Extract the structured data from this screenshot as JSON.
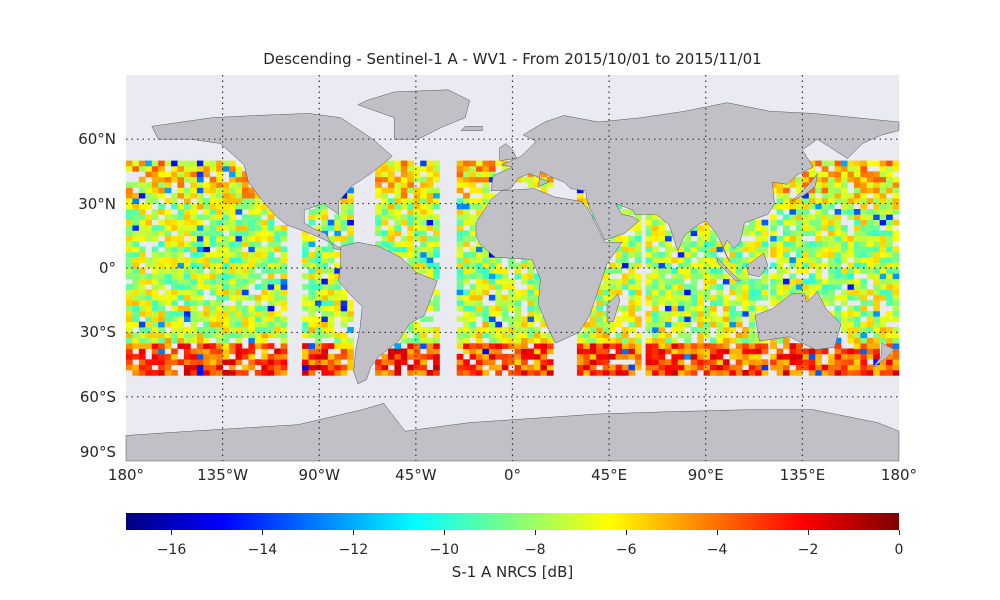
{
  "title": "Descending - Sentinel-1 A - WV1 - From 2015/10/01 to 2015/11/01",
  "map": {
    "projection": "plate-carree",
    "ocean_color": "#eaeaf2",
    "land_color": "#c0c0c6",
    "lon_range": [
      -180,
      180
    ],
    "lat_range": [
      -90,
      90
    ],
    "lat_labels": [
      {
        "lat": 60,
        "label": "60°N"
      },
      {
        "lat": 30,
        "label": "30°N"
      },
      {
        "lat": 0,
        "label": "0°"
      },
      {
        "lat": -30,
        "label": "30°S"
      },
      {
        "lat": -60,
        "label": "60°S"
      },
      {
        "lat": -90,
        "label": "90°S"
      }
    ],
    "lon_labels": [
      {
        "lon": -180,
        "label": "180°"
      },
      {
        "lon": -135,
        "label": "135°W"
      },
      {
        "lon": -90,
        "label": "90°W"
      },
      {
        "lon": -45,
        "label": "45°W"
      },
      {
        "lon": 0,
        "label": "0°"
      },
      {
        "lon": 45,
        "label": "45°E"
      },
      {
        "lon": 90,
        "label": "90°E"
      },
      {
        "lon": 135,
        "label": "135°E"
      },
      {
        "lon": 180,
        "label": "180°"
      }
    ],
    "data_lat_range": [
      -50,
      50
    ]
  },
  "colorbar": {
    "label": "S-1 A NRCS [dB]",
    "min": -17,
    "max": 0,
    "ticks": [
      {
        "value": -16,
        "label": "−16"
      },
      {
        "value": -14,
        "label": "−14"
      },
      {
        "value": -12,
        "label": "−12"
      },
      {
        "value": -10,
        "label": "−10"
      },
      {
        "value": -8,
        "label": "−8"
      },
      {
        "value": -6,
        "label": "−6"
      },
      {
        "value": -4,
        "label": "−4"
      },
      {
        "value": -2,
        "label": "−2"
      },
      {
        "value": 0,
        "label": "0"
      }
    ],
    "colormap": "jet"
  }
}
